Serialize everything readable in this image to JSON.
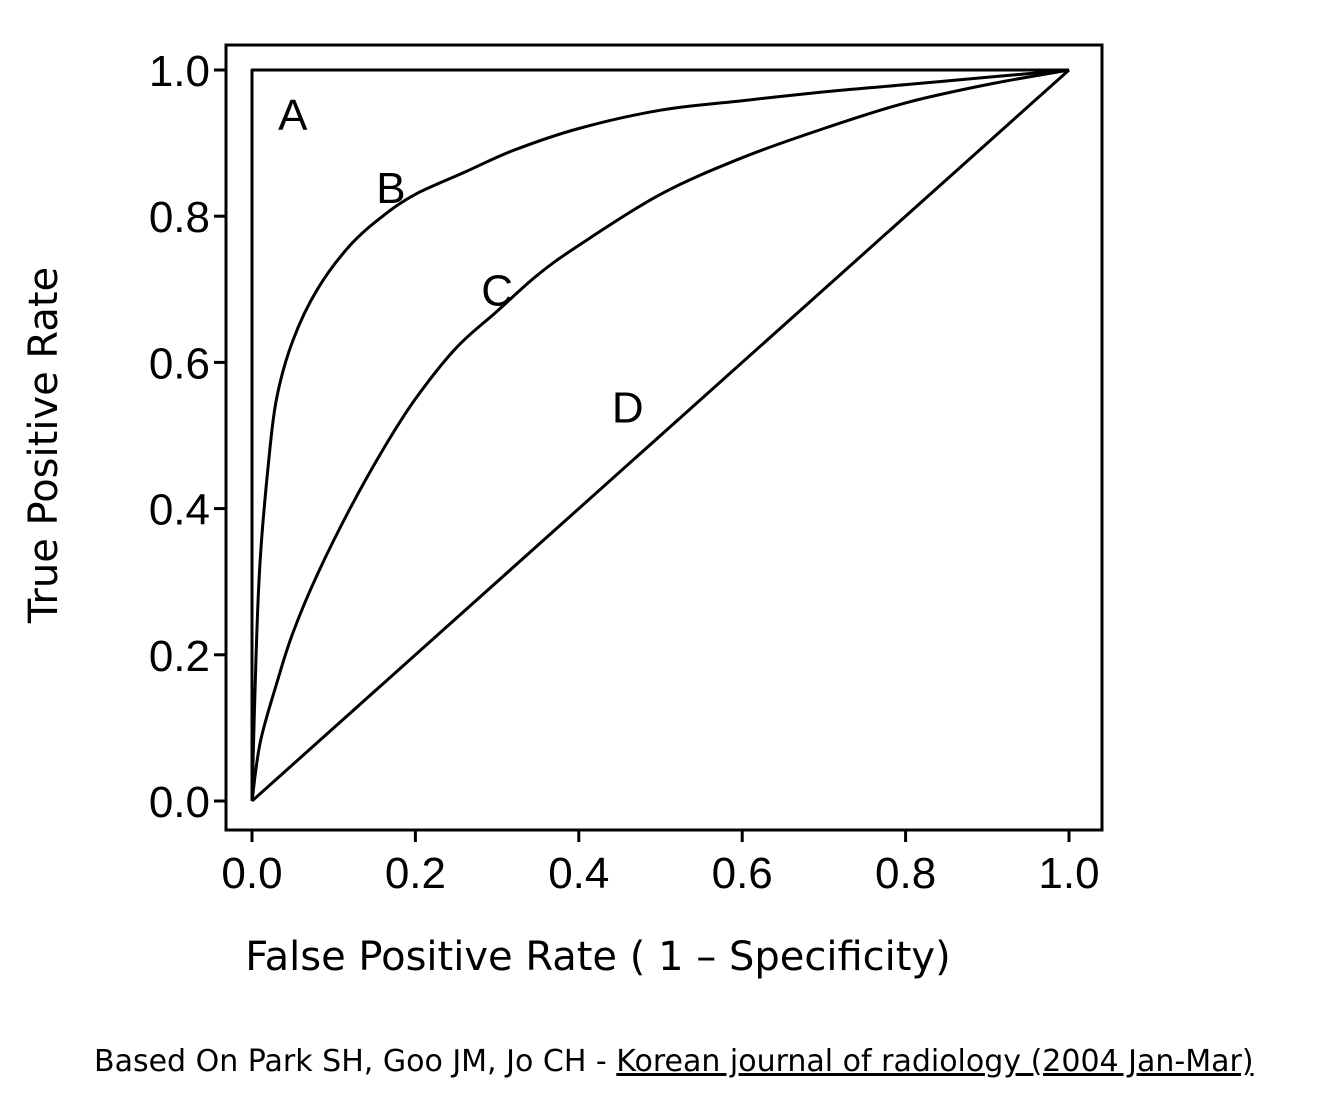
{
  "chart_data": {
    "type": "line",
    "title": "",
    "xlabel": "False Positive Rate ( 1 – Specificity)",
    "ylabel": "True Positive Rate",
    "xlim": [
      0.0,
      1.0
    ],
    "ylim": [
      0.0,
      1.0
    ],
    "xticks": [
      "0.0",
      "0.2",
      "0.4",
      "0.6",
      "0.8",
      "1.0"
    ],
    "yticks": [
      "0.0",
      "0.2",
      "0.4",
      "0.6",
      "0.8",
      "1.0"
    ],
    "grid": false,
    "legend": "none",
    "series": [
      {
        "name": "A",
        "x": [
          0.0,
          0.0,
          1.0
        ],
        "y": [
          0.0,
          1.0,
          1.0
        ]
      },
      {
        "name": "B",
        "x": [
          0.0,
          0.005,
          0.01,
          0.02,
          0.03,
          0.05,
          0.08,
          0.12,
          0.16,
          0.2,
          0.26,
          0.32,
          0.4,
          0.5,
          0.6,
          0.7,
          0.8,
          0.9,
          1.0
        ],
        "y": [
          0.0,
          0.2,
          0.33,
          0.46,
          0.55,
          0.63,
          0.7,
          0.76,
          0.8,
          0.83,
          0.86,
          0.89,
          0.92,
          0.945,
          0.958,
          0.97,
          0.98,
          0.99,
          1.0
        ]
      },
      {
        "name": "C",
        "x": [
          0.0,
          0.01,
          0.03,
          0.05,
          0.08,
          0.12,
          0.16,
          0.2,
          0.25,
          0.3,
          0.35,
          0.4,
          0.5,
          0.6,
          0.7,
          0.8,
          0.9,
          1.0
        ],
        "y": [
          0.0,
          0.08,
          0.16,
          0.23,
          0.31,
          0.4,
          0.48,
          0.55,
          0.62,
          0.67,
          0.72,
          0.76,
          0.83,
          0.88,
          0.92,
          0.955,
          0.98,
          1.0
        ]
      },
      {
        "name": "D",
        "x": [
          0.0,
          1.0
        ],
        "y": [
          0.0,
          1.0
        ]
      }
    ],
    "annotations": [
      {
        "text": "A",
        "x": 0.05,
        "y": 0.94
      },
      {
        "text": "B",
        "x": 0.17,
        "y": 0.84
      },
      {
        "text": "C",
        "x": 0.3,
        "y": 0.7
      },
      {
        "text": "D",
        "x": 0.46,
        "y": 0.54
      }
    ],
    "colors": {
      "line": "#000000",
      "frame": "#000000",
      "background": "#ffffff"
    }
  },
  "caption": {
    "prefix": "Based On Park SH, Goo JM, Jo CH - ",
    "source": "Korean journal of radiology (2004 Jan-Mar)"
  }
}
